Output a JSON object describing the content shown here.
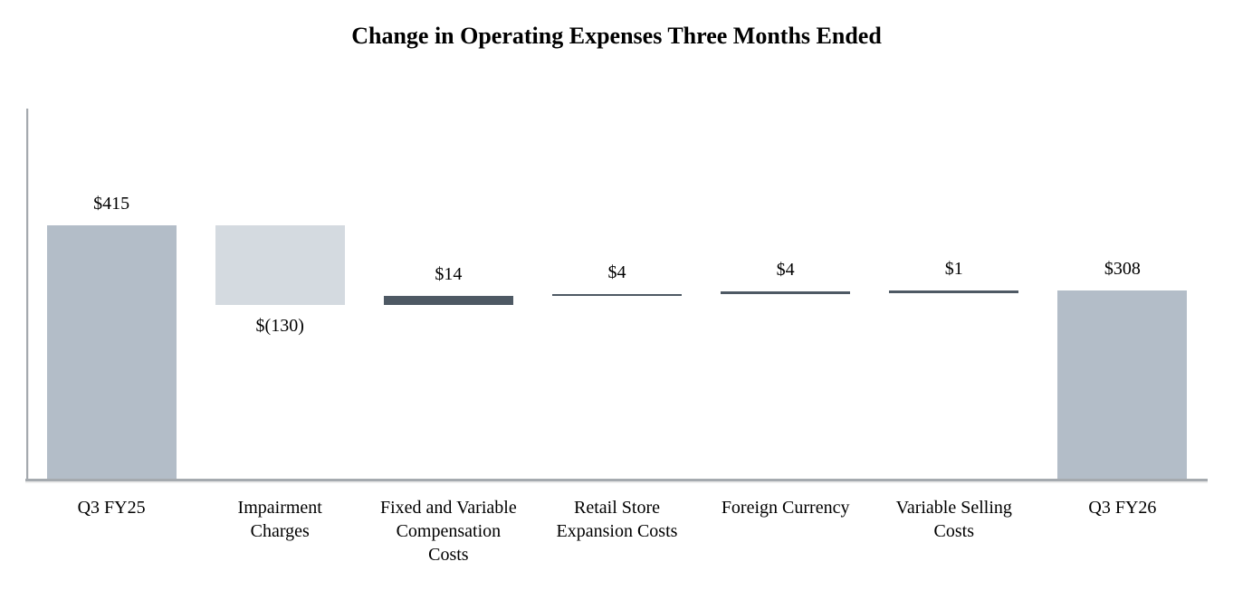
{
  "chart_data": {
    "type": "bar",
    "subtype": "waterfall",
    "title": "Change in Operating Expenses Three Months Ended",
    "categories": [
      "Q3 FY25",
      "Impairment Charges",
      "Fixed and Variable Compensation Costs",
      "Retail Store Expansion Costs",
      "Foreign Currency",
      "Variable Selling Costs",
      "Q3 FY26"
    ],
    "bars": [
      {
        "category_lines": [
          "Q3 FY25"
        ],
        "value": 415,
        "value_label": "$415",
        "kind": "total",
        "start": 0,
        "end": 415
      },
      {
        "category_lines": [
          "Impairment",
          "Charges"
        ],
        "value": -130,
        "value_label": "$(130)",
        "kind": "decrease",
        "start": 415,
        "end": 285
      },
      {
        "category_lines": [
          "Fixed and Variable",
          "Compensation",
          "Costs"
        ],
        "value": 14,
        "value_label": "$14",
        "kind": "increase",
        "start": 285,
        "end": 299
      },
      {
        "category_lines": [
          "Retail Store",
          "Expansion Costs"
        ],
        "value": 4,
        "value_label": "$4",
        "kind": "increase",
        "start": 299,
        "end": 303
      },
      {
        "category_lines": [
          "Foreign Currency"
        ],
        "value": 4,
        "value_label": "$4",
        "kind": "increase",
        "start": 303,
        "end": 307
      },
      {
        "category_lines": [
          "Variable Selling",
          "Costs"
        ],
        "value": 1,
        "value_label": "$1",
        "kind": "increase",
        "start": 307,
        "end": 308
      },
      {
        "category_lines": [
          "Q3 FY26"
        ],
        "value": 308,
        "value_label": "$308",
        "kind": "total",
        "start": 0,
        "end": 308
      }
    ],
    "xlabel": "",
    "ylabel": "",
    "ylim": [
      0,
      608
    ],
    "grid": false,
    "legend": null,
    "colors": {
      "total": "#b3bdc8",
      "decrease": "#d4dae0",
      "increase": "#4e5964",
      "axis": "#a5aaaf",
      "text": "#000000"
    }
  }
}
